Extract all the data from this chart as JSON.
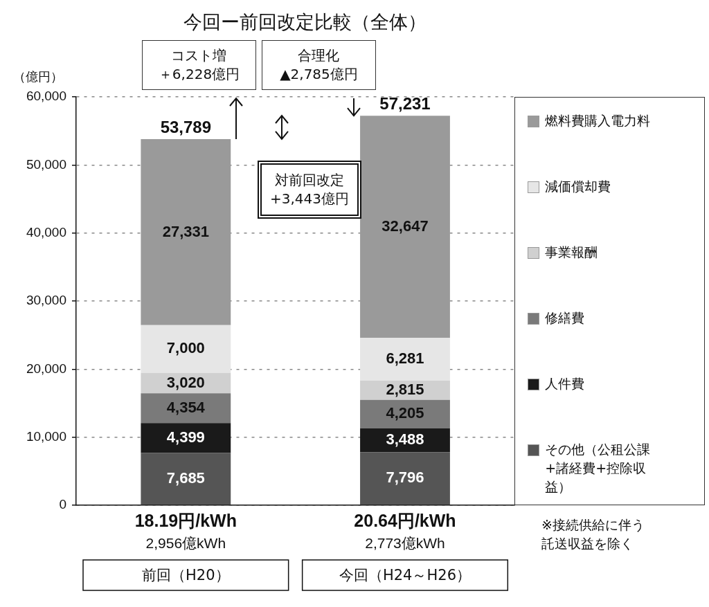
{
  "chart_data": {
    "type": "bar",
    "title": "今回ー前回改定比較（全体）",
    "ylabel": "（億円）",
    "categories": [
      "前回（H20）",
      "今回（H24～H26）"
    ],
    "stacked": true,
    "series": [
      {
        "name": "その他（公租公課+諸経費+控除収益）",
        "color": "#555555",
        "values": [
          7685,
          7796
        ],
        "value_labels": [
          "7,685",
          "7,796"
        ]
      },
      {
        "name": "人件費",
        "color": "#1a1a1a",
        "values": [
          4399,
          3488
        ],
        "value_labels": [
          "4,399",
          "3,488"
        ]
      },
      {
        "name": "修繕費",
        "color": "#7a7a7a",
        "values": [
          4354,
          4205
        ],
        "value_labels": [
          "4,354",
          "4,205"
        ]
      },
      {
        "name": "事業報酬",
        "color": "#d0d0d0",
        "values": [
          3020,
          2815
        ],
        "value_labels": [
          "3,020",
          "2,815"
        ]
      },
      {
        "name": "減価償却費",
        "color": "#e6e6e6",
        "values": [
          7000,
          6281
        ],
        "value_labels": [
          "7,000",
          "6,281"
        ]
      },
      {
        "name": "燃料費購入電力料",
        "color": "#9a9a9a",
        "values": [
          27331,
          32647
        ],
        "value_labels": [
          "27,331",
          "32,647"
        ]
      }
    ],
    "ylim": [
      0,
      60000
    ],
    "yticks": [
      0,
      {
        "value": 10000,
        "label": "10,000"
      },
      {
        "value": 20000,
        "label": "20,000"
      },
      {
        "value": 30000,
        "label": "30,000"
      },
      {
        "value": 40000,
        "label": "40,000"
      },
      {
        "value": 50000,
        "label": "50,000"
      },
      {
        "value": 60000,
        "label": "60,000"
      }
    ],
    "grid": "y",
    "legend": "right",
    "totals": [
      "53,789",
      "57,231"
    ],
    "annotations": [
      "コスト増＋6,228億円",
      "合理化▲2,785億円",
      "対前回改定+3,443億円",
      "18.19円/kWh",
      "2,956億kWh",
      "20.64円/kWh",
      "2,773億kWh",
      "※接続供給に伴う託送収益を除く"
    ]
  }
}
